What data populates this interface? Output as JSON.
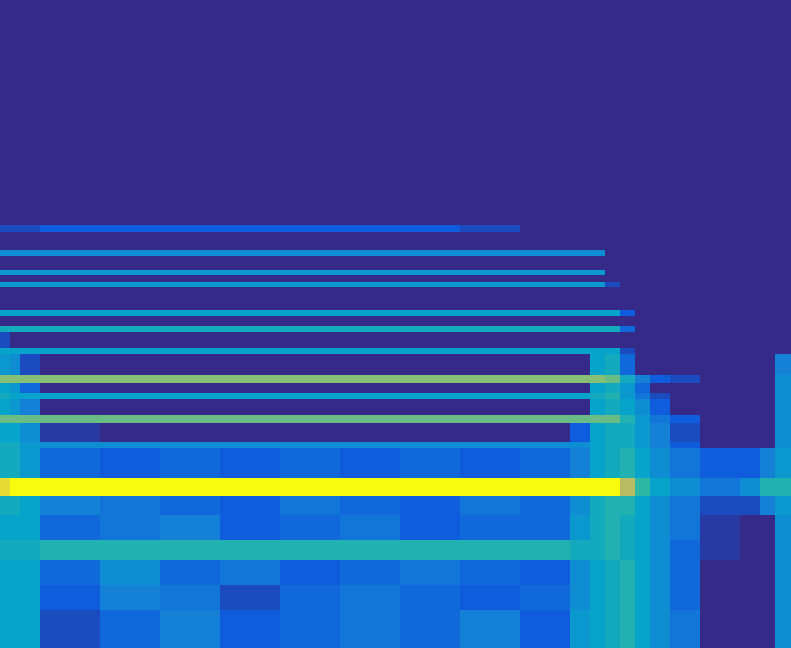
{
  "chart_data": {
    "type": "heatmap",
    "tick_labels": false,
    "xlim": [
      0,
      791
    ],
    "ylim": [
      648,
      0
    ],
    "zlim": [
      0,
      1
    ],
    "x": [
      0,
      10,
      20,
      40,
      100,
      160,
      220,
      280,
      340,
      400,
      460,
      520,
      570,
      590,
      605,
      620,
      635,
      650,
      670,
      700,
      740,
      760,
      775,
      791
    ],
    "y": [
      0,
      225,
      232,
      250,
      256,
      270,
      275,
      282,
      287,
      310,
      316,
      326,
      332,
      348,
      354,
      375,
      383,
      393,
      399,
      415,
      423,
      442,
      448,
      478,
      496,
      515,
      540,
      560,
      585,
      610,
      648
    ],
    "cells": [
      [
        0,
        0,
        0,
        0,
        0,
        0,
        0,
        0,
        0,
        0,
        0,
        0,
        0,
        0,
        0,
        0,
        0,
        0,
        0,
        0,
        0,
        0,
        0
      ],
      [
        0.1,
        0.1,
        0.1,
        0.15,
        0.15,
        0.15,
        0.15,
        0.15,
        0.15,
        0.15,
        0.1,
        0,
        0,
        0,
        0,
        0,
        0,
        0,
        0,
        0,
        0,
        0,
        0
      ],
      [
        0,
        0,
        0,
        0,
        0,
        0,
        0,
        0,
        0,
        0,
        0,
        0,
        0,
        0,
        0,
        0,
        0,
        0,
        0,
        0,
        0,
        0,
        0
      ],
      [
        0.35,
        0.35,
        0.35,
        0.35,
        0.35,
        0.35,
        0.35,
        0.35,
        0.35,
        0.35,
        0.35,
        0.35,
        0.35,
        0.35,
        0,
        0,
        0,
        0,
        0,
        0,
        0,
        0,
        0
      ],
      [
        0,
        0,
        0,
        0,
        0,
        0,
        0,
        0,
        0,
        0,
        0,
        0,
        0,
        0,
        0,
        0,
        0,
        0,
        0,
        0,
        0,
        0,
        0
      ],
      [
        0.4,
        0.4,
        0.4,
        0.4,
        0.4,
        0.4,
        0.4,
        0.4,
        0.4,
        0.4,
        0.4,
        0.4,
        0.4,
        0.4,
        0,
        0,
        0,
        0,
        0,
        0,
        0,
        0,
        0
      ],
      [
        0,
        0,
        0,
        0,
        0,
        0,
        0,
        0,
        0,
        0,
        0,
        0,
        0,
        0,
        0,
        0,
        0,
        0,
        0,
        0,
        0,
        0,
        0
      ],
      [
        0.4,
        0.4,
        0.4,
        0.4,
        0.4,
        0.4,
        0.4,
        0.4,
        0.4,
        0.4,
        0.4,
        0.4,
        0.4,
        0.4,
        0.1,
        0,
        0,
        0,
        0,
        0,
        0,
        0,
        0
      ],
      [
        0,
        0,
        0,
        0,
        0,
        0,
        0,
        0,
        0,
        0,
        0,
        0,
        0,
        0,
        0,
        0,
        0,
        0,
        0,
        0,
        0,
        0,
        0
      ],
      [
        0.45,
        0.45,
        0.45,
        0.45,
        0.45,
        0.45,
        0.45,
        0.45,
        0.45,
        0.45,
        0.45,
        0.45,
        0.45,
        0.45,
        0.45,
        0.15,
        0,
        0,
        0,
        0,
        0,
        0,
        0
      ],
      [
        0,
        0,
        0,
        0,
        0,
        0,
        0,
        0,
        0,
        0,
        0,
        0,
        0,
        0,
        0,
        0,
        0,
        0,
        0,
        0,
        0,
        0,
        0
      ],
      [
        0.5,
        0.5,
        0.5,
        0.5,
        0.5,
        0.5,
        0.5,
        0.5,
        0.5,
        0.5,
        0.5,
        0.5,
        0.5,
        0.5,
        0.5,
        0.2,
        0,
        0,
        0,
        0,
        0,
        0,
        0
      ],
      [
        0.1,
        0,
        0,
        0,
        0,
        0,
        0,
        0,
        0,
        0,
        0,
        0,
        0,
        0,
        0,
        0,
        0,
        0,
        0,
        0,
        0,
        0,
        0
      ],
      [
        0.45,
        0.45,
        0.45,
        0.45,
        0.45,
        0.45,
        0.45,
        0.45,
        0.45,
        0.45,
        0.45,
        0.45,
        0.45,
        0.45,
        0.45,
        0.1,
        0,
        0,
        0,
        0,
        0,
        0,
        0
      ],
      [
        0.4,
        0.35,
        0.1,
        0,
        0,
        0,
        0,
        0,
        0,
        0,
        0,
        0,
        0,
        0.45,
        0.5,
        0.2,
        0,
        0,
        0,
        0,
        0,
        0,
        0.3
      ],
      [
        0.75,
        0.75,
        0.75,
        0.75,
        0.75,
        0.75,
        0.75,
        0.75,
        0.75,
        0.75,
        0.75,
        0.75,
        0.75,
        0.75,
        0.7,
        0.5,
        0.3,
        0.15,
        0.1,
        0,
        0,
        0,
        0.35
      ],
      [
        0.45,
        0.4,
        0.2,
        0,
        0,
        0,
        0,
        0,
        0,
        0,
        0,
        0,
        0,
        0.45,
        0.5,
        0.4,
        0.2,
        0,
        0,
        0,
        0,
        0,
        0.35
      ],
      [
        0.5,
        0.45,
        0.45,
        0.45,
        0.45,
        0.45,
        0.45,
        0.45,
        0.45,
        0.45,
        0.45,
        0.45,
        0.45,
        0.5,
        0.55,
        0.4,
        0.25,
        0.1,
        0,
        0,
        0,
        0,
        0.35
      ],
      [
        0.45,
        0.4,
        0.3,
        0,
        0,
        0,
        0,
        0,
        0,
        0,
        0,
        0,
        0,
        0.45,
        0.5,
        0.45,
        0.35,
        0.15,
        0,
        0,
        0,
        0,
        0.35
      ],
      [
        0.7,
        0.7,
        0.7,
        0.7,
        0.7,
        0.7,
        0.7,
        0.7,
        0.7,
        0.7,
        0.7,
        0.7,
        0.7,
        0.7,
        0.7,
        0.55,
        0.4,
        0.25,
        0.15,
        0,
        0,
        0,
        0.35
      ],
      [
        0.45,
        0.45,
        0.35,
        0.05,
        0,
        0,
        0,
        0,
        0,
        0,
        0,
        0,
        0.15,
        0.45,
        0.5,
        0.5,
        0.4,
        0.3,
        0.1,
        0,
        0,
        0,
        0.35
      ],
      [
        0.5,
        0.5,
        0.4,
        0.35,
        0.35,
        0.35,
        0.35,
        0.35,
        0.35,
        0.35,
        0.35,
        0.35,
        0.35,
        0.45,
        0.5,
        0.5,
        0.4,
        0.3,
        0.15,
        0,
        0,
        0,
        0.35
      ],
      [
        0.5,
        0.5,
        0.4,
        0.2,
        0.15,
        0.2,
        0.15,
        0.2,
        0.15,
        0.2,
        0.15,
        0.2,
        0.3,
        0.45,
        0.5,
        0.55,
        0.45,
        0.35,
        0.25,
        0.15,
        0.15,
        0.3,
        0.4
      ],
      [
        0.95,
        1,
        1,
        1,
        1,
        1,
        1,
        1,
        1,
        1,
        1,
        1,
        1,
        1,
        1,
        0.85,
        0.6,
        0.45,
        0.35,
        0.25,
        0.35,
        0.55,
        0.55
      ],
      [
        0.5,
        0.5,
        0.45,
        0.3,
        0.25,
        0.2,
        0.15,
        0.25,
        0.2,
        0.15,
        0.25,
        0.2,
        0.35,
        0.5,
        0.55,
        0.55,
        0.45,
        0.35,
        0.25,
        0.1,
        0.1,
        0.3,
        0.4
      ],
      [
        0.45,
        0.45,
        0.45,
        0.2,
        0.25,
        0.3,
        0.15,
        0.2,
        0.25,
        0.15,
        0.2,
        0.2,
        0.4,
        0.5,
        0.55,
        0.5,
        0.45,
        0.35,
        0.25,
        0.05,
        0,
        0,
        0.35
      ],
      [
        0.5,
        0.5,
        0.5,
        0.55,
        0.55,
        0.55,
        0.55,
        0.55,
        0.55,
        0.55,
        0.55,
        0.55,
        0.5,
        0.5,
        0.55,
        0.5,
        0.45,
        0.35,
        0.2,
        0.05,
        0,
        0,
        0.35
      ],
      [
        0.45,
        0.45,
        0.45,
        0.2,
        0.35,
        0.2,
        0.25,
        0.15,
        0.2,
        0.25,
        0.2,
        0.15,
        0.35,
        0.45,
        0.5,
        0.55,
        0.45,
        0.35,
        0.2,
        0,
        0,
        0,
        0.35
      ],
      [
        0.45,
        0.45,
        0.45,
        0.15,
        0.3,
        0.25,
        0.1,
        0.2,
        0.25,
        0.2,
        0.15,
        0.2,
        0.35,
        0.45,
        0.5,
        0.55,
        0.45,
        0.35,
        0.2,
        0,
        0,
        0,
        0.35
      ],
      [
        0.45,
        0.45,
        0.45,
        0.1,
        0.2,
        0.3,
        0.15,
        0.2,
        0.25,
        0.2,
        0.3,
        0.15,
        0.4,
        0.45,
        0.5,
        0.55,
        0.45,
        0.35,
        0.25,
        0,
        0,
        0,
        0.35
      ]
    ]
  }
}
